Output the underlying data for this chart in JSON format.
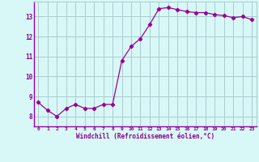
{
  "x": [
    0,
    1,
    2,
    3,
    4,
    5,
    6,
    7,
    8,
    9,
    10,
    11,
    12,
    13,
    14,
    15,
    16,
    17,
    18,
    19,
    20,
    21,
    22,
    23
  ],
  "y": [
    8.7,
    8.3,
    8.0,
    8.4,
    8.6,
    8.4,
    8.4,
    8.6,
    8.6,
    10.8,
    11.5,
    11.9,
    12.6,
    13.4,
    13.45,
    13.35,
    13.25,
    13.2,
    13.2,
    13.1,
    13.05,
    12.95,
    13.0,
    12.85
  ],
  "line_color": "#990099",
  "marker": "D",
  "marker_size": 2.2,
  "bg_color": "#d8f8f8",
  "grid_color": "#aacccc",
  "xlabel": "Windchill (Refroidissement éolien,°C)",
  "ylabel": "",
  "ylim": [
    7.5,
    13.75
  ],
  "xlim": [
    -0.5,
    23.5
  ],
  "yticks": [
    8,
    9,
    10,
    11,
    12,
    13
  ],
  "xticks": [
    0,
    1,
    2,
    3,
    4,
    5,
    6,
    7,
    8,
    9,
    10,
    11,
    12,
    13,
    14,
    15,
    16,
    17,
    18,
    19,
    20,
    21,
    22,
    23
  ],
  "xtick_labels": [
    "0",
    "1",
    "2",
    "3",
    "4",
    "5",
    "6",
    "7",
    "8",
    "9",
    "10",
    "11",
    "12",
    "13",
    "14",
    "15",
    "16",
    "17",
    "18",
    "19",
    "20",
    "21",
    "22",
    "23"
  ],
  "tick_color": "#880088",
  "label_color": "#880088",
  "spine_color": "#9900aa"
}
